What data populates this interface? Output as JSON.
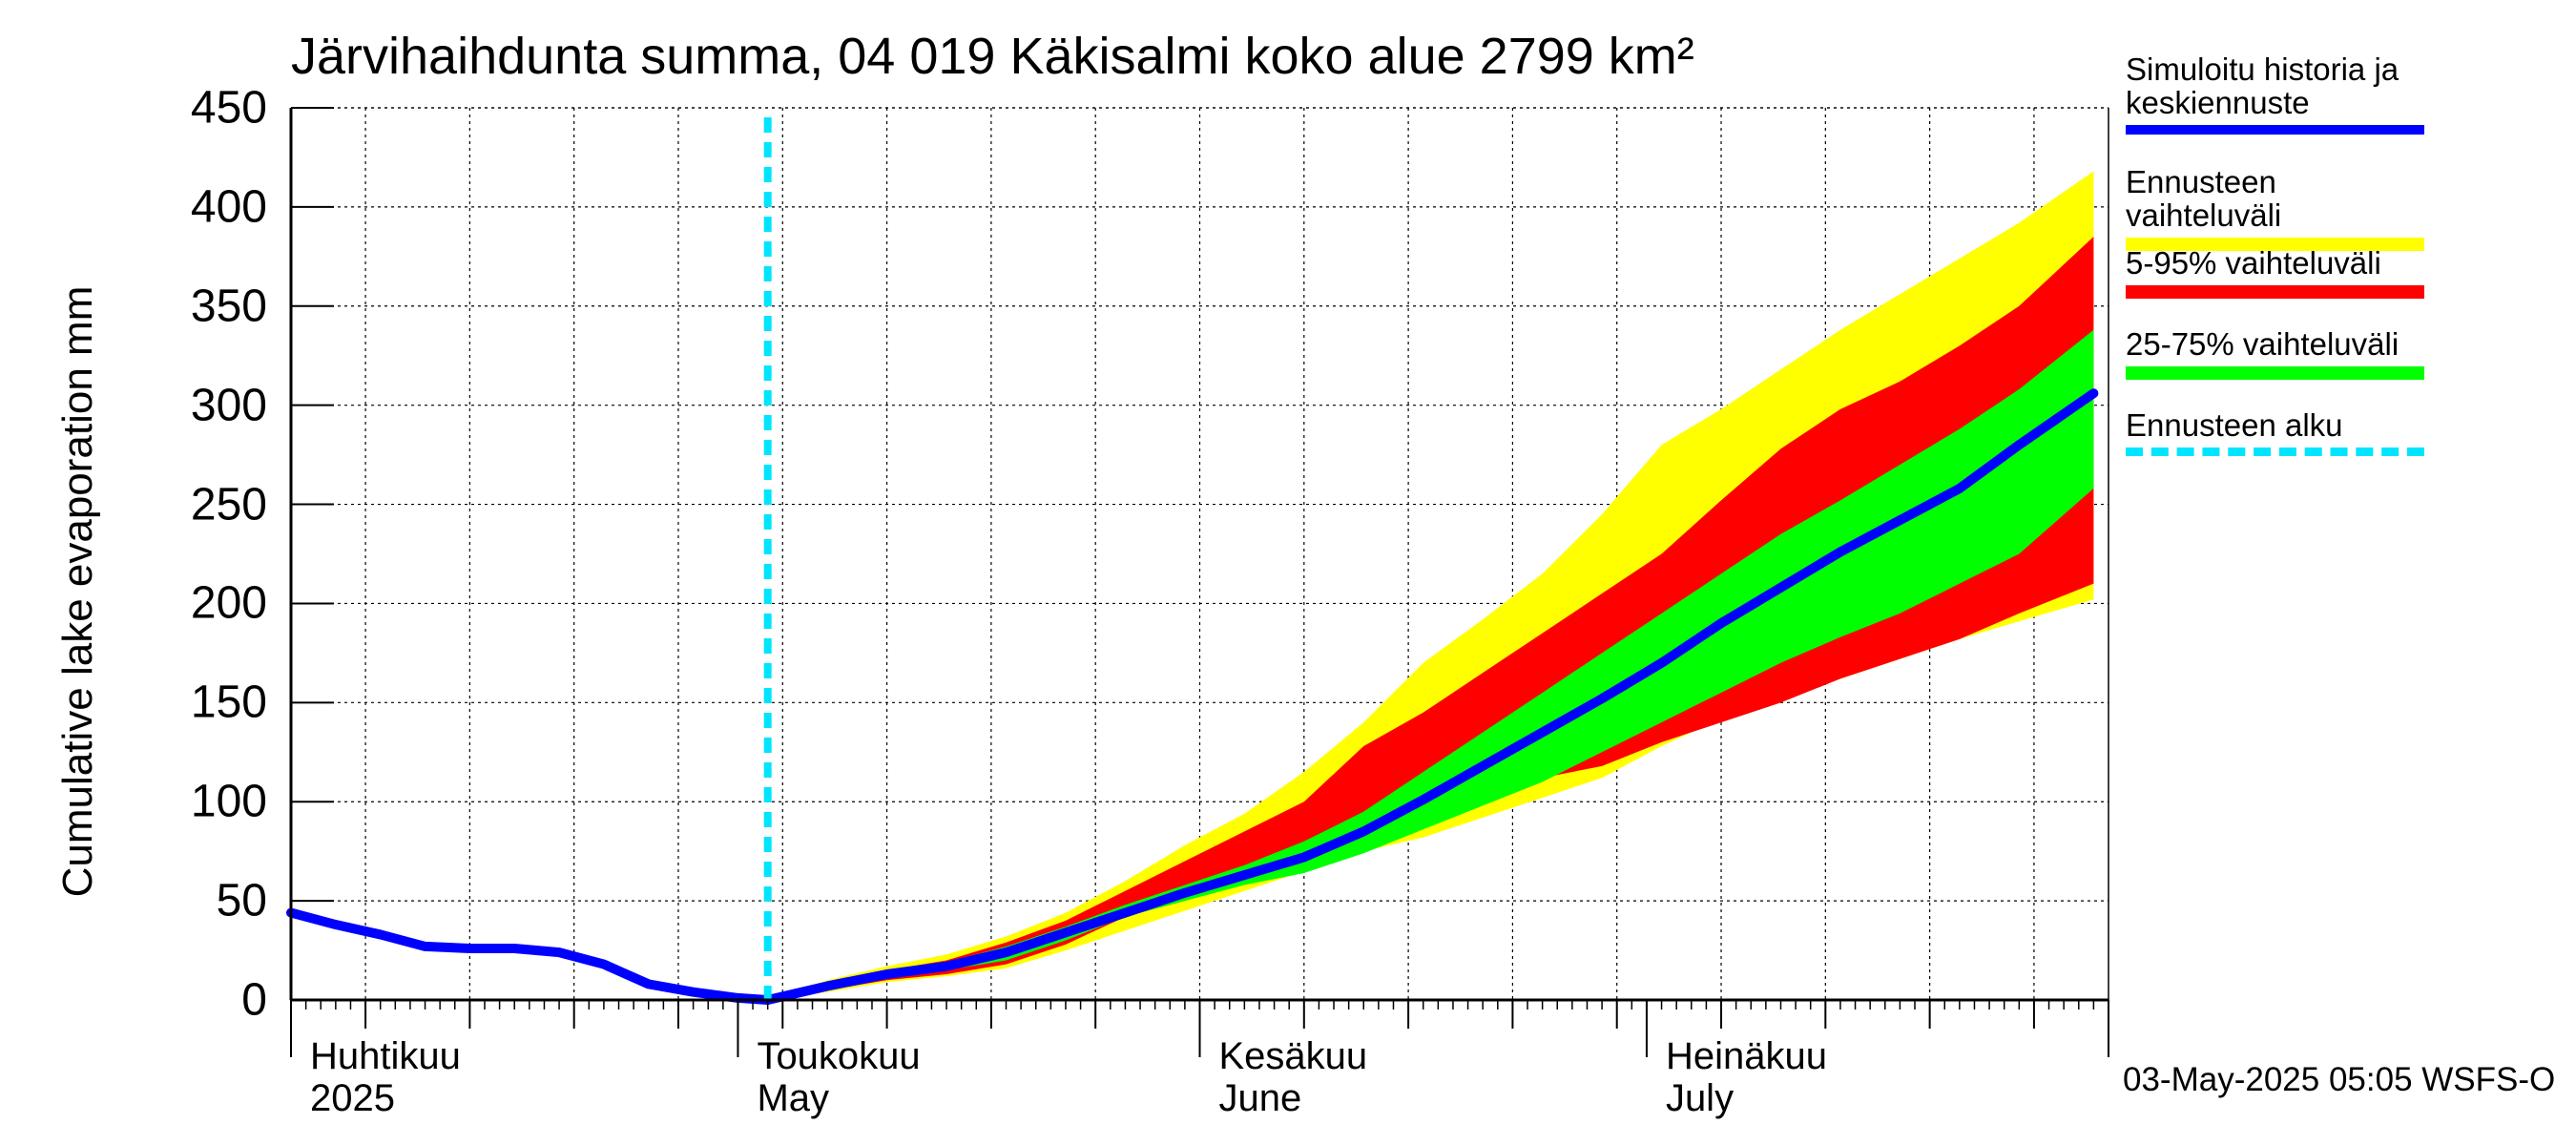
{
  "title": "Järvihaihdunta summa, 04 019 Käkisalmi koko alue 2799 km²",
  "footer": "03-May-2025 05:05 WSFS-O",
  "chart_data": {
    "type": "area",
    "title": "Järvihaihdunta summa, 04 019 Käkisalmi koko alue 2799 km²",
    "ylabel": "Cumulative lake evaporation   mm",
    "ylim": [
      0,
      450
    ],
    "yticks": [
      "0",
      "50",
      "100",
      "150",
      "200",
      "250",
      "300",
      "350",
      "400",
      "450"
    ],
    "xlim": [
      "2025-04-01",
      "2025-07-31"
    ],
    "grid": true,
    "legend_position": "right",
    "forecast_start": "2025-05-03",
    "month_labels": [
      {
        "date": "2025-04-01",
        "line1": "Huhtikuu",
        "line2": "2025"
      },
      {
        "date": "2025-05-01",
        "line1": "Toukokuu",
        "line2": "May"
      },
      {
        "date": "2025-06-01",
        "line1": "Kesäkuu",
        "line2": "June"
      },
      {
        "date": "2025-07-01",
        "line1": "Heinäkuu",
        "line2": "July"
      }
    ],
    "history": {
      "name": "Simuloitu historia ja keskiennuste",
      "x": [
        "2025-04-01",
        "2025-04-04",
        "2025-04-07",
        "2025-04-10",
        "2025-04-13",
        "2025-04-16",
        "2025-04-19",
        "2025-04-22",
        "2025-04-25",
        "2025-04-28",
        "2025-05-01",
        "2025-05-03"
      ],
      "y": [
        44,
        38,
        33,
        27,
        26,
        26,
        24,
        18,
        8,
        4,
        1,
        0
      ]
    },
    "median": {
      "x": [
        "2025-05-03",
        "2025-05-07",
        "2025-05-11",
        "2025-05-15",
        "2025-05-19",
        "2025-05-23",
        "2025-05-27",
        "2025-05-31",
        "2025-06-04",
        "2025-06-08",
        "2025-06-12",
        "2025-06-16",
        "2025-06-20",
        "2025-06-24",
        "2025-06-28",
        "2025-07-02",
        "2025-07-06",
        "2025-07-10",
        "2025-07-14",
        "2025-07-18",
        "2025-07-22",
        "2025-07-26",
        "2025-07-31"
      ],
      "y": [
        0,
        7,
        13,
        17,
        24,
        34,
        44,
        54,
        63,
        72,
        85,
        101,
        118,
        135,
        152,
        170,
        190,
        208,
        226,
        242,
        258,
        280,
        306
      ]
    },
    "bands": [
      {
        "name": "Ennusteen vaihteluväli",
        "color": "#ffff00",
        "x": [
          "2025-05-03",
          "2025-05-07",
          "2025-05-11",
          "2025-05-15",
          "2025-05-19",
          "2025-05-23",
          "2025-05-27",
          "2025-05-31",
          "2025-06-04",
          "2025-06-08",
          "2025-06-12",
          "2025-06-16",
          "2025-06-20",
          "2025-06-24",
          "2025-06-28",
          "2025-07-02",
          "2025-07-06",
          "2025-07-10",
          "2025-07-14",
          "2025-07-18",
          "2025-07-22",
          "2025-07-26",
          "2025-07-31"
        ],
        "upper": [
          0,
          10,
          17,
          23,
          32,
          44,
          60,
          78,
          94,
          115,
          140,
          170,
          192,
          215,
          245,
          280,
          298,
          318,
          338,
          356,
          374,
          392,
          418
        ],
        "lower": [
          0,
          4,
          9,
          12,
          16,
          25,
          35,
          45,
          55,
          65,
          75,
          82,
          92,
          102,
          112,
          128,
          142,
          154,
          162,
          172,
          182,
          191,
          202
        ]
      },
      {
        "name": "5-95% vaihteluväli",
        "color": "#ff0000",
        "x": [
          "2025-05-03",
          "2025-05-07",
          "2025-05-11",
          "2025-05-15",
          "2025-05-19",
          "2025-05-23",
          "2025-05-27",
          "2025-05-31",
          "2025-06-04",
          "2025-06-08",
          "2025-06-12",
          "2025-06-16",
          "2025-06-20",
          "2025-06-24",
          "2025-06-28",
          "2025-07-02",
          "2025-07-06",
          "2025-07-10",
          "2025-07-14",
          "2025-07-18",
          "2025-07-22",
          "2025-07-26",
          "2025-07-31"
        ],
        "upper": [
          0,
          9,
          15,
          20,
          29,
          40,
          55,
          70,
          85,
          100,
          128,
          145,
          165,
          185,
          205,
          225,
          252,
          278,
          298,
          312,
          330,
          350,
          385
        ],
        "lower": [
          0,
          5,
          10,
          13,
          18,
          28,
          42,
          50,
          60,
          72,
          82,
          88,
          100,
          112,
          118,
          130,
          140,
          150,
          162,
          172,
          182,
          195,
          210
        ]
      },
      {
        "name": "25-75% vaihteluväli",
        "color": "#00ff00",
        "x": [
          "2025-05-03",
          "2025-05-07",
          "2025-05-11",
          "2025-05-15",
          "2025-05-19",
          "2025-05-23",
          "2025-05-27",
          "2025-05-31",
          "2025-06-04",
          "2025-06-08",
          "2025-06-12",
          "2025-06-16",
          "2025-06-20",
          "2025-06-24",
          "2025-06-28",
          "2025-07-02",
          "2025-07-06",
          "2025-07-10",
          "2025-07-14",
          "2025-07-18",
          "2025-07-22",
          "2025-07-26",
          "2025-07-31"
        ],
        "upper": [
          0,
          8,
          14,
          19,
          27,
          37,
          48,
          58,
          68,
          80,
          95,
          115,
          135,
          155,
          175,
          195,
          215,
          235,
          252,
          270,
          288,
          308,
          338
        ],
        "lower": [
          0,
          6,
          12,
          15,
          20,
          30,
          42,
          50,
          58,
          64,
          74,
          86,
          98,
          110,
          125,
          140,
          155,
          170,
          183,
          195,
          210,
          225,
          258
        ]
      }
    ],
    "legend": [
      {
        "label": "Simuloitu historia ja keskiennuste",
        "color": "#0000ff",
        "style": "solid"
      },
      {
        "label": "Ennusteen vaihteluväli",
        "color": "#ffff00",
        "style": "solid"
      },
      {
        "label": "5-95% vaihteluväli",
        "color": "#ff0000",
        "style": "solid"
      },
      {
        "label": "25-75% vaihteluväli",
        "color": "#00ff00",
        "style": "solid"
      },
      {
        "label": "Ennusteen alku",
        "color": "#00e5ff",
        "style": "dashed"
      }
    ]
  }
}
